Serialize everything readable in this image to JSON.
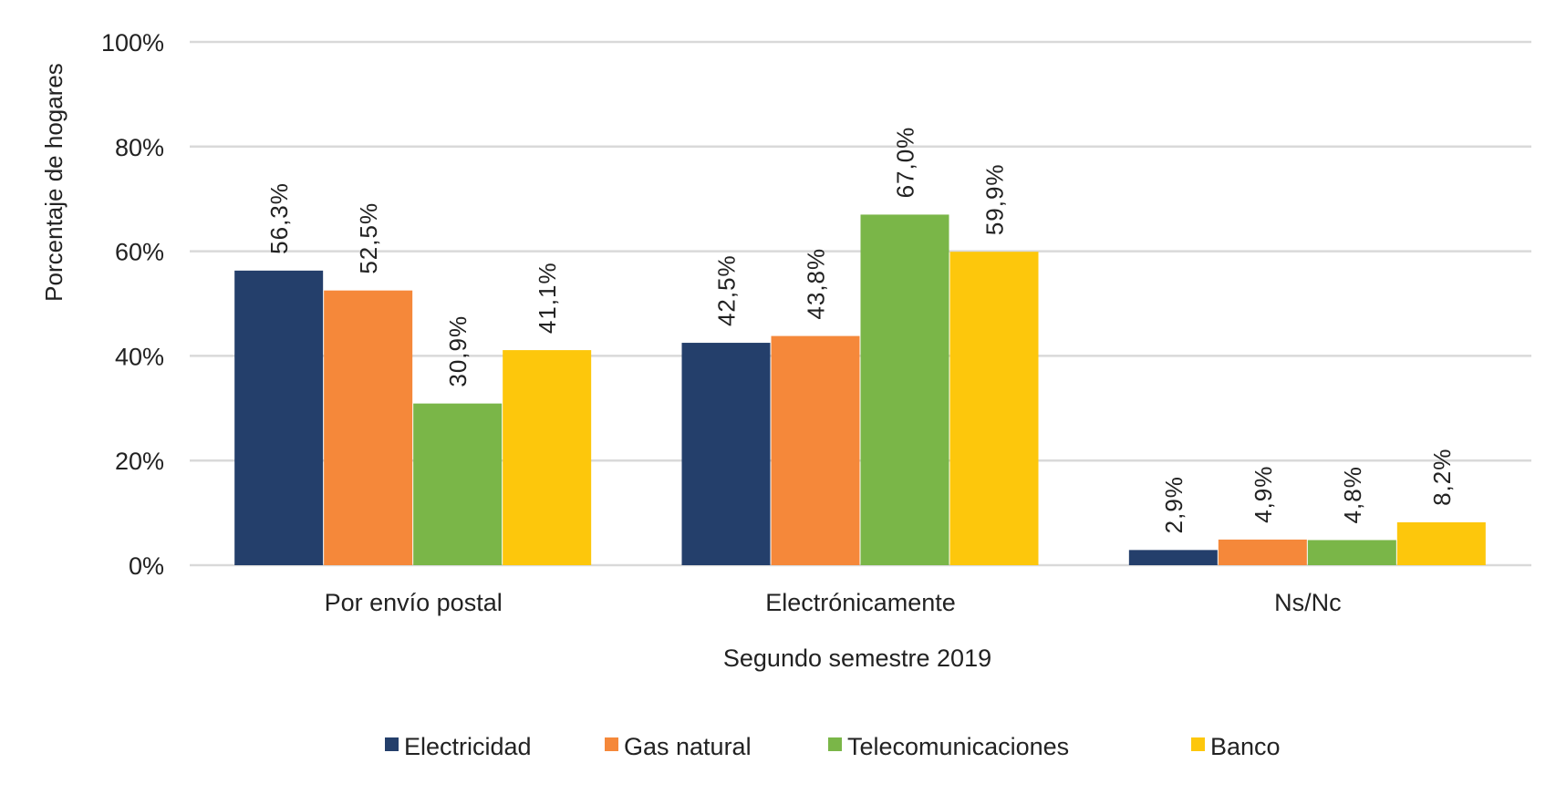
{
  "chart_data": {
    "type": "bar",
    "xlabel": "Segundo semestre 2019",
    "ylabel": "Porcentaje de hogares",
    "ylim": [
      0,
      100
    ],
    "yticks": [
      "0%",
      "20%",
      "40%",
      "60%",
      "80%",
      "100%"
    ],
    "grid": true,
    "legend_position": "bottom",
    "categories": [
      "Por envío postal",
      "Electrónicamente",
      "Ns/Nc"
    ],
    "series": [
      {
        "name": "Electricidad",
        "color": "#243F6B",
        "values": [
          56.3,
          42.5,
          2.9
        ],
        "labels": [
          "56,3%",
          "42,5%",
          "2,9%"
        ]
      },
      {
        "name": "Gas natural",
        "color": "#F5883A",
        "values": [
          52.5,
          43.8,
          4.9
        ],
        "labels": [
          "52,5%",
          "43,8%",
          "4,9%"
        ]
      },
      {
        "name": "Telecomunicaciones",
        "color": "#7AB648",
        "values": [
          30.9,
          67.0,
          4.8
        ],
        "labels": [
          "30,9%",
          "67,0%",
          "4,8%"
        ]
      },
      {
        "name": "Banco",
        "color": "#FDC70C",
        "values": [
          41.1,
          59.9,
          8.2
        ],
        "labels": [
          "41,1%",
          "59,9%",
          "8,2%"
        ]
      }
    ]
  }
}
